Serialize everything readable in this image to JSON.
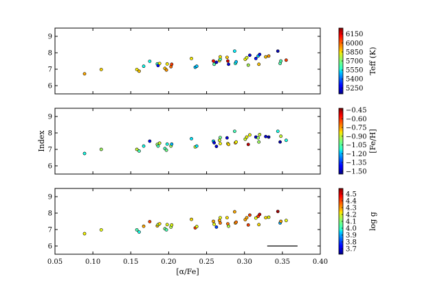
{
  "chart_data": [
    {
      "type": "scatter",
      "xlim": [
        0.05,
        0.4
      ],
      "ylim": [
        5.5,
        9.5
      ],
      "xticks": [
        0.05,
        0.1,
        0.15,
        0.2,
        0.25,
        0.3,
        0.35,
        0.4
      ],
      "yticks": [
        6,
        7,
        8,
        9
      ],
      "show_xtick_labels": false,
      "colorbar": {
        "label": "Teff (K)",
        "range": [
          5150,
          6250
        ],
        "ticks": [
          "6150",
          "6000",
          "5850",
          "5700",
          "5550",
          "5400",
          "5250"
        ],
        "tick_values": [
          6150,
          6000,
          5850,
          5700,
          5550,
          5400,
          5250
        ]
      },
      "points": [
        {
          "x": 0.089,
          "y": 6.72,
          "c": 5930
        },
        {
          "x": 0.111,
          "y": 6.98,
          "c": 5880
        },
        {
          "x": 0.158,
          "y": 6.98,
          "c": 5850
        },
        {
          "x": 0.161,
          "y": 6.88,
          "c": 5900
        },
        {
          "x": 0.167,
          "y": 7.18,
          "c": 5580
        },
        {
          "x": 0.175,
          "y": 7.48,
          "c": 5580
        },
        {
          "x": 0.185,
          "y": 7.32,
          "c": 5620
        },
        {
          "x": 0.186,
          "y": 7.22,
          "c": 5300
        },
        {
          "x": 0.188,
          "y": 7.35,
          "c": 5850
        },
        {
          "x": 0.195,
          "y": 7.05,
          "c": 5900
        },
        {
          "x": 0.197,
          "y": 6.95,
          "c": 5950
        },
        {
          "x": 0.198,
          "y": 7.32,
          "c": 5850
        },
        {
          "x": 0.203,
          "y": 7.15,
          "c": 6000
        },
        {
          "x": 0.204,
          "y": 7.3,
          "c": 6050
        },
        {
          "x": 0.23,
          "y": 7.65,
          "c": 5850
        },
        {
          "x": 0.235,
          "y": 7.12,
          "c": 5500
        },
        {
          "x": 0.237,
          "y": 7.18,
          "c": 5500
        },
        {
          "x": 0.259,
          "y": 7.5,
          "c": 6100
        },
        {
          "x": 0.26,
          "y": 7.3,
          "c": 5650
        },
        {
          "x": 0.263,
          "y": 7.42,
          "c": 5250
        },
        {
          "x": 0.267,
          "y": 7.52,
          "c": 5850
        },
        {
          "x": 0.268,
          "y": 7.6,
          "c": 5650
        },
        {
          "x": 0.268,
          "y": 7.75,
          "c": 5850
        },
        {
          "x": 0.277,
          "y": 7.72,
          "c": 5900
        },
        {
          "x": 0.278,
          "y": 7.5,
          "c": 6150
        },
        {
          "x": 0.279,
          "y": 7.3,
          "c": 5250
        },
        {
          "x": 0.287,
          "y": 8.1,
          "c": 5550
        },
        {
          "x": 0.288,
          "y": 7.35,
          "c": 5600
        },
        {
          "x": 0.289,
          "y": 7.45,
          "c": 5500
        },
        {
          "x": 0.301,
          "y": 7.6,
          "c": 5850
        },
        {
          "x": 0.303,
          "y": 7.7,
          "c": 5800
        },
        {
          "x": 0.305,
          "y": 7.25,
          "c": 5750
        },
        {
          "x": 0.307,
          "y": 7.85,
          "c": 5250
        },
        {
          "x": 0.315,
          "y": 7.65,
          "c": 5300
        },
        {
          "x": 0.318,
          "y": 7.8,
          "c": 5500
        },
        {
          "x": 0.319,
          "y": 7.3,
          "c": 5900
        },
        {
          "x": 0.32,
          "y": 7.9,
          "c": 5300
        },
        {
          "x": 0.328,
          "y": 7.75,
          "c": 5900
        },
        {
          "x": 0.332,
          "y": 7.8,
          "c": 5950
        },
        {
          "x": 0.344,
          "y": 8.1,
          "c": 5200
        },
        {
          "x": 0.347,
          "y": 7.35,
          "c": 5650
        },
        {
          "x": 0.348,
          "y": 7.5,
          "c": 5650
        },
        {
          "x": 0.355,
          "y": 7.55,
          "c": 6050
        }
      ]
    },
    {
      "type": "scatter",
      "xlim": [
        0.05,
        0.4
      ],
      "ylim": [
        5.5,
        9.5
      ],
      "xticks": [
        0.05,
        0.1,
        0.15,
        0.2,
        0.25,
        0.3,
        0.35,
        0.4
      ],
      "yticks": [
        6,
        7,
        8,
        9
      ],
      "ylabel": "Index",
      "show_xtick_labels": false,
      "colorbar": {
        "label": "[Fe/H]",
        "range": [
          -1.55,
          -0.42
        ],
        "ticks": [
          "−0.45",
          "−0.60",
          "−0.75",
          "−0.90",
          "−1.05",
          "−1.20",
          "−1.35",
          "−1.50"
        ],
        "tick_values": [
          -0.45,
          -0.6,
          -0.75,
          -0.9,
          -1.05,
          -1.2,
          -1.35,
          -1.5
        ]
      },
      "points": [
        {
          "x": 0.089,
          "y": 6.75,
          "c": -1.1
        },
        {
          "x": 0.111,
          "y": 7.0,
          "c": -0.95
        },
        {
          "x": 0.158,
          "y": 7.0,
          "c": -0.9
        },
        {
          "x": 0.161,
          "y": 6.9,
          "c": -1.05
        },
        {
          "x": 0.167,
          "y": 7.2,
          "c": -1.1
        },
        {
          "x": 0.175,
          "y": 7.5,
          "c": -1.4
        },
        {
          "x": 0.185,
          "y": 7.3,
          "c": -0.95
        },
        {
          "x": 0.186,
          "y": 7.2,
          "c": -1.05
        },
        {
          "x": 0.188,
          "y": 7.38,
          "c": -0.9
        },
        {
          "x": 0.195,
          "y": 7.05,
          "c": -1.05
        },
        {
          "x": 0.197,
          "y": 6.95,
          "c": -1.0
        },
        {
          "x": 0.198,
          "y": 7.32,
          "c": -1.1
        },
        {
          "x": 0.203,
          "y": 7.2,
          "c": -0.95
        },
        {
          "x": 0.204,
          "y": 7.32,
          "c": -1.2
        },
        {
          "x": 0.23,
          "y": 7.65,
          "c": -1.15
        },
        {
          "x": 0.235,
          "y": 7.15,
          "c": -0.9
        },
        {
          "x": 0.237,
          "y": 7.2,
          "c": -1.15
        },
        {
          "x": 0.259,
          "y": 7.5,
          "c": -1.2
        },
        {
          "x": 0.26,
          "y": 7.4,
          "c": -1.45
        },
        {
          "x": 0.263,
          "y": 7.18,
          "c": -1.45
        },
        {
          "x": 0.267,
          "y": 7.55,
          "c": -0.9
        },
        {
          "x": 0.268,
          "y": 7.35,
          "c": -0.85
        },
        {
          "x": 0.268,
          "y": 7.72,
          "c": -1.0
        },
        {
          "x": 0.277,
          "y": 7.7,
          "c": -1.45
        },
        {
          "x": 0.278,
          "y": 7.35,
          "c": -0.85
        },
        {
          "x": 0.279,
          "y": 7.3,
          "c": -0.8
        },
        {
          "x": 0.287,
          "y": 8.1,
          "c": -1.05
        },
        {
          "x": 0.288,
          "y": 7.4,
          "c": -0.75
        },
        {
          "x": 0.289,
          "y": 7.45,
          "c": -0.85
        },
        {
          "x": 0.301,
          "y": 7.62,
          "c": -0.9
        },
        {
          "x": 0.303,
          "y": 7.75,
          "c": -0.85
        },
        {
          "x": 0.305,
          "y": 7.3,
          "c": -0.5
        },
        {
          "x": 0.307,
          "y": 7.88,
          "c": -0.85
        },
        {
          "x": 0.315,
          "y": 7.75,
          "c": -1.45
        },
        {
          "x": 0.318,
          "y": 7.7,
          "c": -0.95
        },
        {
          "x": 0.319,
          "y": 7.45,
          "c": -0.95
        },
        {
          "x": 0.32,
          "y": 7.9,
          "c": -0.9
        },
        {
          "x": 0.328,
          "y": 7.78,
          "c": -1.45
        },
        {
          "x": 0.332,
          "y": 7.75,
          "c": -1.5
        },
        {
          "x": 0.344,
          "y": 8.1,
          "c": -1.1
        },
        {
          "x": 0.347,
          "y": 7.45,
          "c": -1.5
        },
        {
          "x": 0.348,
          "y": 7.8,
          "c": -0.9
        },
        {
          "x": 0.355,
          "y": 7.55,
          "c": -1.1
        }
      ]
    },
    {
      "type": "scatter",
      "xlim": [
        0.05,
        0.4
      ],
      "ylim": [
        5.5,
        9.5
      ],
      "xticks": [
        0.05,
        0.1,
        0.15,
        0.2,
        0.25,
        0.3,
        0.35,
        0.4
      ],
      "yticks": [
        6,
        7,
        8,
        9
      ],
      "xlabel": "[α/Fe]",
      "show_xtick_labels": true,
      "xtick_labels": [
        "0.05",
        "0.10",
        "0.15",
        "0.20",
        "0.25",
        "0.30",
        "0.35",
        "0.40"
      ],
      "reference_line": {
        "x": [
          0.33,
          0.37
        ],
        "y": 6.0
      },
      "colorbar": {
        "label": "log g",
        "range": [
          3.62,
          4.58
        ],
        "ticks": [
          "4.5",
          "4.4",
          "4.3",
          "4.2",
          "4.1",
          "4.0",
          "3.9",
          "3.8",
          "3.7"
        ],
        "tick_values": [
          4.5,
          4.4,
          4.3,
          4.2,
          4.1,
          4.0,
          3.9,
          3.8,
          3.7
        ]
      },
      "points": [
        {
          "x": 0.089,
          "y": 6.75,
          "c": 4.22
        },
        {
          "x": 0.111,
          "y": 6.98,
          "c": 4.2
        },
        {
          "x": 0.158,
          "y": 6.98,
          "c": 4.05
        },
        {
          "x": 0.161,
          "y": 6.85,
          "c": 4.0
        },
        {
          "x": 0.167,
          "y": 7.2,
          "c": 4.3
        },
        {
          "x": 0.175,
          "y": 7.48,
          "c": 4.4
        },
        {
          "x": 0.185,
          "y": 7.22,
          "c": 4.28
        },
        {
          "x": 0.186,
          "y": 7.3,
          "c": 4.15
        },
        {
          "x": 0.188,
          "y": 7.35,
          "c": 4.25
        },
        {
          "x": 0.195,
          "y": 7.05,
          "c": 4.1
        },
        {
          "x": 0.197,
          "y": 6.98,
          "c": 4.05
        },
        {
          "x": 0.198,
          "y": 7.3,
          "c": 4.2
        },
        {
          "x": 0.203,
          "y": 7.15,
          "c": 4.15
        },
        {
          "x": 0.204,
          "y": 7.28,
          "c": 4.2
        },
        {
          "x": 0.23,
          "y": 7.62,
          "c": 4.25
        },
        {
          "x": 0.235,
          "y": 7.1,
          "c": 4.4
        },
        {
          "x": 0.237,
          "y": 7.18,
          "c": 4.2
        },
        {
          "x": 0.259,
          "y": 7.5,
          "c": 4.3
        },
        {
          "x": 0.26,
          "y": 7.32,
          "c": 4.2
        },
        {
          "x": 0.263,
          "y": 7.15,
          "c": 3.8
        },
        {
          "x": 0.267,
          "y": 7.55,
          "c": 4.3
        },
        {
          "x": 0.268,
          "y": 7.4,
          "c": 4.35
        },
        {
          "x": 0.268,
          "y": 7.72,
          "c": 4.2
        },
        {
          "x": 0.277,
          "y": 7.72,
          "c": 4.25
        },
        {
          "x": 0.278,
          "y": 7.35,
          "c": 4.35
        },
        {
          "x": 0.279,
          "y": 7.2,
          "c": 4.15
        },
        {
          "x": 0.287,
          "y": 8.08,
          "c": 4.3
        },
        {
          "x": 0.288,
          "y": 7.4,
          "c": 4.3
        },
        {
          "x": 0.289,
          "y": 7.45,
          "c": 4.35
        },
        {
          "x": 0.301,
          "y": 7.6,
          "c": 4.3
        },
        {
          "x": 0.303,
          "y": 7.72,
          "c": 4.3
        },
        {
          "x": 0.305,
          "y": 7.28,
          "c": 4.4
        },
        {
          "x": 0.307,
          "y": 7.88,
          "c": 4.4
        },
        {
          "x": 0.315,
          "y": 7.7,
          "c": 4.2
        },
        {
          "x": 0.318,
          "y": 7.8,
          "c": 4.4
        },
        {
          "x": 0.319,
          "y": 7.3,
          "c": 4.25
        },
        {
          "x": 0.32,
          "y": 7.92,
          "c": 4.5
        },
        {
          "x": 0.328,
          "y": 7.72,
          "c": 4.25
        },
        {
          "x": 0.332,
          "y": 7.75,
          "c": 4.2
        },
        {
          "x": 0.344,
          "y": 8.1,
          "c": 4.55
        },
        {
          "x": 0.347,
          "y": 7.4,
          "c": 3.9
        },
        {
          "x": 0.348,
          "y": 7.5,
          "c": 4.3
        },
        {
          "x": 0.355,
          "y": 7.55,
          "c": 4.2
        }
      ]
    }
  ]
}
